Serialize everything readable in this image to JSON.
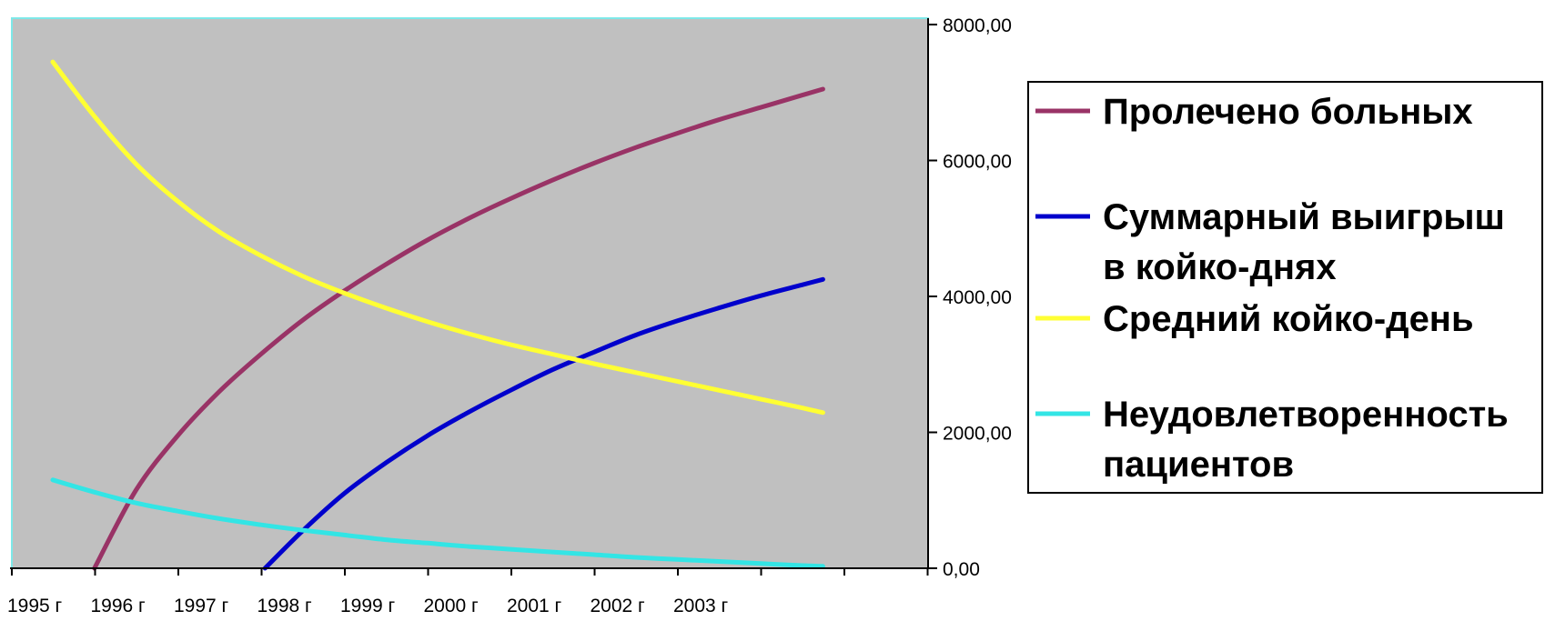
{
  "chart_data": {
    "type": "line",
    "x": [
      "1995 г",
      "1996 г",
      "1997 г",
      "1998 г",
      "1999 г",
      "2000 г",
      "2001 г",
      "2002 г",
      "2003 г"
    ],
    "y_ticks": [
      "8000,00",
      "6000,00",
      "4000,00",
      "2000,00",
      "0,00"
    ],
    "ylim": [
      0,
      8000
    ],
    "y_axis_position": "right",
    "grid": false,
    "legend_position": "right",
    "colors": {
      "plot_background": "#c0c0c0",
      "plot_border": "#7ee8e8"
    },
    "series": [
      {
        "name": "Пролечено больных",
        "color": "#993366",
        "points": [
          [
            1995.5,
            0
          ],
          [
            1996.0,
            1150
          ],
          [
            1996.5,
            1950
          ],
          [
            1997.0,
            2600
          ],
          [
            1997.5,
            3150
          ],
          [
            1998.0,
            3650
          ],
          [
            1998.5,
            4080
          ],
          [
            1999.0,
            4470
          ],
          [
            1999.5,
            4830
          ],
          [
            2000.0,
            5150
          ],
          [
            2000.5,
            5440
          ],
          [
            2001.0,
            5710
          ],
          [
            2001.5,
            5960
          ],
          [
            2002.0,
            6190
          ],
          [
            2002.5,
            6400
          ],
          [
            2003.0,
            6600
          ],
          [
            2003.5,
            6780
          ],
          [
            2004.0,
            6960
          ],
          [
            2004.25,
            7050
          ]
        ]
      },
      {
        "name": "Суммарный выигрыш в койко-днях",
        "color": "#0000cc",
        "points": [
          [
            1997.55,
            0
          ],
          [
            1998.0,
            550
          ],
          [
            1998.5,
            1100
          ],
          [
            1999.0,
            1550
          ],
          [
            1999.5,
            1950
          ],
          [
            2000.0,
            2300
          ],
          [
            2000.5,
            2620
          ],
          [
            2001.0,
            2920
          ],
          [
            2001.5,
            3180
          ],
          [
            2002.0,
            3430
          ],
          [
            2002.5,
            3640
          ],
          [
            2003.0,
            3830
          ],
          [
            2003.5,
            4010
          ],
          [
            2004.0,
            4170
          ],
          [
            2004.25,
            4250
          ]
        ]
      },
      {
        "name": "Средний койко-день",
        "color": "#ffff33",
        "points": [
          [
            1995.0,
            7450
          ],
          [
            1995.5,
            6650
          ],
          [
            1996.0,
            5950
          ],
          [
            1996.5,
            5400
          ],
          [
            1997.0,
            4950
          ],
          [
            1997.5,
            4600
          ],
          [
            1998.0,
            4300
          ],
          [
            1998.5,
            4050
          ],
          [
            1999.0,
            3830
          ],
          [
            1999.5,
            3630
          ],
          [
            2000.0,
            3450
          ],
          [
            2000.5,
            3290
          ],
          [
            2001.0,
            3150
          ],
          [
            2001.5,
            3010
          ],
          [
            2002.0,
            2880
          ],
          [
            2002.5,
            2750
          ],
          [
            2003.0,
            2620
          ],
          [
            2003.5,
            2490
          ],
          [
            2004.0,
            2360
          ],
          [
            2004.25,
            2290
          ]
        ]
      },
      {
        "name": "Неудовлетворенность пациентов",
        "color": "#33e5e5",
        "points": [
          [
            1995.0,
            1300
          ],
          [
            1995.5,
            1120
          ],
          [
            1996.0,
            960
          ],
          [
            1996.5,
            840
          ],
          [
            1997.0,
            730
          ],
          [
            1997.5,
            640
          ],
          [
            1998.0,
            560
          ],
          [
            1998.5,
            490
          ],
          [
            1999.0,
            420
          ],
          [
            1999.5,
            370
          ],
          [
            2000.0,
            320
          ],
          [
            2000.5,
            280
          ],
          [
            2001.0,
            240
          ],
          [
            2001.5,
            200
          ],
          [
            2002.0,
            160
          ],
          [
            2002.5,
            130
          ],
          [
            2003.0,
            100
          ],
          [
            2003.5,
            70
          ],
          [
            2004.0,
            40
          ],
          [
            2004.25,
            30
          ]
        ]
      }
    ]
  },
  "legend": {
    "items": [
      {
        "lines": [
          "Пролечено больных"
        ],
        "color": "#993366"
      },
      {
        "lines": [
          "Суммарный выигрыш",
          "в койко-днях"
        ],
        "color": "#0000cc"
      },
      {
        "lines": [
          "Средний койко-день"
        ],
        "color": "#ffff33"
      },
      {
        "lines": [
          "Неудовлетворенность",
          "пациентов"
        ],
        "color": "#33e5e5"
      }
    ]
  }
}
